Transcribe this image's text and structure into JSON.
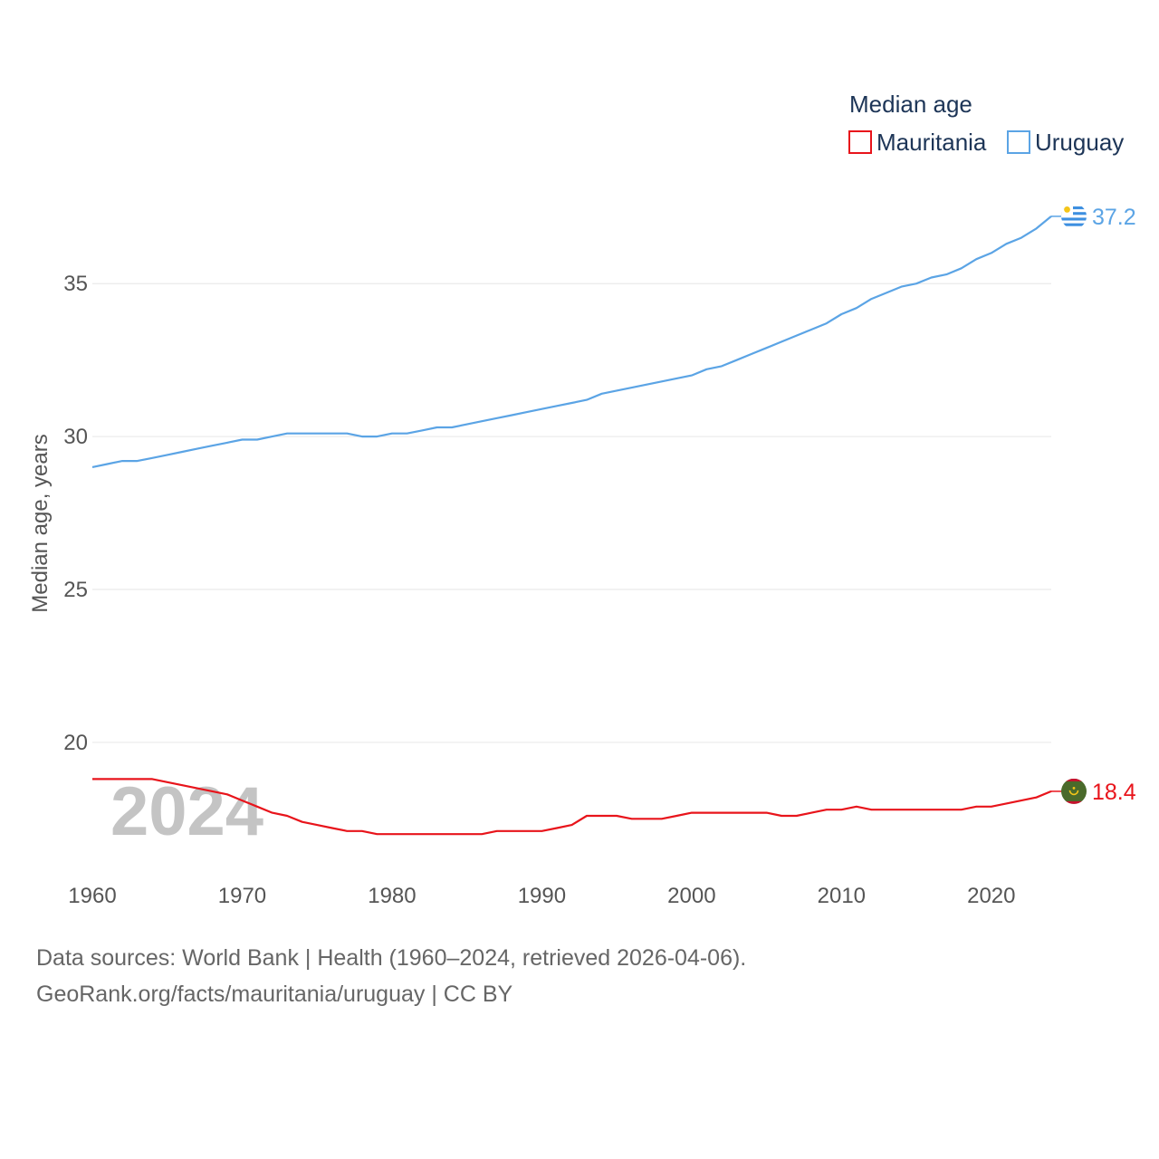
{
  "chart_data": {
    "type": "line",
    "title": "Median age",
    "xlabel": "",
    "ylabel": "Median age, years",
    "xlim": [
      1960,
      2024
    ],
    "ylim": [
      16.0,
      38.5
    ],
    "x_ticks": [
      1960,
      1970,
      1980,
      1990,
      2000,
      2010,
      2020
    ],
    "y_ticks": [
      20,
      25,
      30,
      35
    ],
    "grid": true,
    "legend_position": "top-right",
    "current_year_label": "2024",
    "x": [
      1960,
      1961,
      1962,
      1963,
      1964,
      1965,
      1966,
      1967,
      1968,
      1969,
      1970,
      1971,
      1972,
      1973,
      1974,
      1975,
      1976,
      1977,
      1978,
      1979,
      1980,
      1981,
      1982,
      1983,
      1984,
      1985,
      1986,
      1987,
      1988,
      1989,
      1990,
      1991,
      1992,
      1993,
      1994,
      1995,
      1996,
      1997,
      1998,
      1999,
      2000,
      2001,
      2002,
      2003,
      2004,
      2005,
      2006,
      2007,
      2008,
      2009,
      2010,
      2011,
      2012,
      2013,
      2014,
      2015,
      2016,
      2017,
      2018,
      2019,
      2020,
      2021,
      2022,
      2023,
      2024
    ],
    "series": [
      {
        "name": "Mauritania",
        "color": "#e8141b",
        "end_label": "18.4",
        "flag_icon": "mauritania-flag-icon",
        "values": [
          18.8,
          18.8,
          18.8,
          18.8,
          18.8,
          18.7,
          18.6,
          18.5,
          18.4,
          18.3,
          18.1,
          17.9,
          17.7,
          17.6,
          17.4,
          17.3,
          17.2,
          17.1,
          17.1,
          17.0,
          17.0,
          17.0,
          17.0,
          17.0,
          17.0,
          17.0,
          17.0,
          17.1,
          17.1,
          17.1,
          17.1,
          17.2,
          17.3,
          17.6,
          17.6,
          17.6,
          17.5,
          17.5,
          17.5,
          17.6,
          17.7,
          17.7,
          17.7,
          17.7,
          17.7,
          17.7,
          17.6,
          17.6,
          17.7,
          17.8,
          17.8,
          17.9,
          17.8,
          17.8,
          17.8,
          17.8,
          17.8,
          17.8,
          17.8,
          17.9,
          17.9,
          18.0,
          18.1,
          18.2,
          18.4
        ]
      },
      {
        "name": "Uruguay",
        "color": "#5ba4e5",
        "end_label": "37.2",
        "flag_icon": "uruguay-flag-icon",
        "values": [
          29.0,
          29.1,
          29.2,
          29.2,
          29.3,
          29.4,
          29.5,
          29.6,
          29.7,
          29.8,
          29.9,
          29.9,
          30.0,
          30.1,
          30.1,
          30.1,
          30.1,
          30.1,
          30.0,
          30.0,
          30.1,
          30.1,
          30.2,
          30.3,
          30.3,
          30.4,
          30.5,
          30.6,
          30.7,
          30.8,
          30.9,
          31.0,
          31.1,
          31.2,
          31.4,
          31.5,
          31.6,
          31.7,
          31.8,
          31.9,
          32.0,
          32.2,
          32.3,
          32.5,
          32.7,
          32.9,
          33.1,
          33.3,
          33.5,
          33.7,
          34.0,
          34.2,
          34.5,
          34.7,
          34.9,
          35.0,
          35.2,
          35.3,
          35.5,
          35.8,
          36.0,
          36.3,
          36.5,
          36.8,
          37.2
        ]
      }
    ]
  },
  "legend": {
    "title": "Median age",
    "items": [
      "Mauritania",
      "Uruguay"
    ]
  },
  "footer": {
    "line1": "Data sources: World Bank | Health (1960–2024, retrieved 2026-04-06).",
    "line2": "GeoRank.org/facts/mauritania/uruguay | CC BY"
  }
}
